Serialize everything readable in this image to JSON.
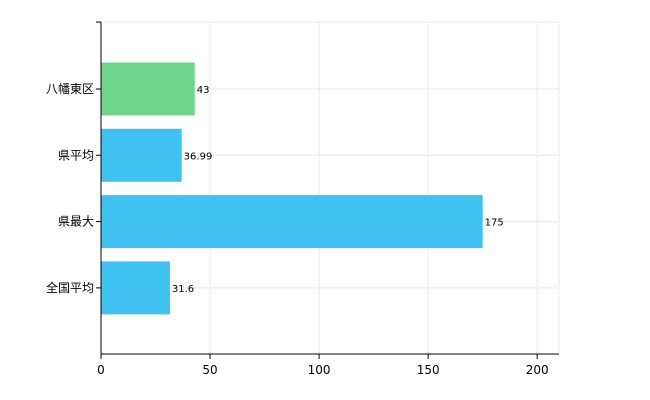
{
  "chart_data": {
    "type": "bar",
    "orientation": "horizontal",
    "categories": [
      "八幡東区",
      "県平均",
      "県最大",
      "全国平均"
    ],
    "values": [
      43,
      36.99,
      175,
      31.6
    ],
    "value_labels": [
      "43",
      "36.99",
      "175",
      "31.6"
    ],
    "bar_colors": [
      "#6fd58d",
      "#3fc1f2",
      "#3fc1f2",
      "#3fc1f2"
    ],
    "xlim": [
      0,
      210
    ],
    "x_ticks": [
      0,
      50,
      100,
      150,
      200
    ],
    "x_tick_labels": [
      "0",
      "50",
      "100",
      "150",
      "200"
    ],
    "grid": true,
    "title": "",
    "xlabel": "",
    "ylabel": ""
  }
}
